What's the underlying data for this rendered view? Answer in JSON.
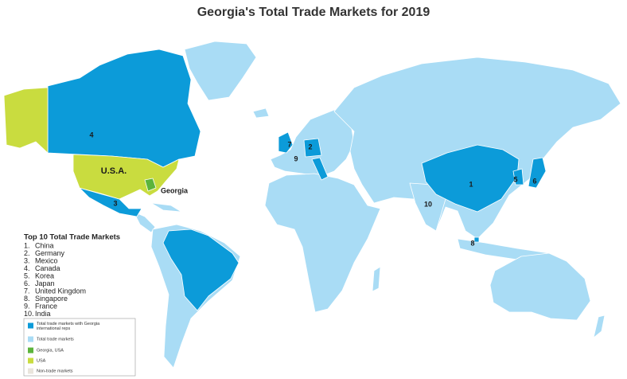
{
  "title": "Georgia's Total Trade Markets for 2019",
  "list": {
    "heading": "Top 10 Total Trade Markets",
    "items": [
      {
        "rank": "1.",
        "name": "China"
      },
      {
        "rank": "2.",
        "name": "Germany"
      },
      {
        "rank": "3.",
        "name": "Mexico"
      },
      {
        "rank": "4.",
        "name": "Canada"
      },
      {
        "rank": "5.",
        "name": "Korea"
      },
      {
        "rank": "6.",
        "name": "Japan"
      },
      {
        "rank": "7.",
        "name": "United Kingdom"
      },
      {
        "rank": "8.",
        "name": "Singapore"
      },
      {
        "rank": "9.",
        "name": "France"
      },
      {
        "rank": "10.",
        "name": "India"
      }
    ]
  },
  "legend": [
    {
      "label": "Total trade markets with Georgia international reps",
      "color": "#0c9bd9"
    },
    {
      "label": "Total trade markets",
      "color": "#a9dcf5"
    },
    {
      "label": "Georgia, USA",
      "color": "#5cb43b"
    },
    {
      "label": "USA",
      "color": "#c9dc3f"
    },
    {
      "label": "Non-trade markets",
      "color": "#e9e5dc"
    }
  ],
  "map_labels": [
    {
      "text": "4"
    },
    {
      "text": "U.S.A."
    },
    {
      "text": "Georgia"
    },
    {
      "text": "3"
    },
    {
      "text": "7"
    },
    {
      "text": "2"
    },
    {
      "text": "9"
    },
    {
      "text": "1"
    },
    {
      "text": "5"
    },
    {
      "text": "6"
    },
    {
      "text": "10"
    },
    {
      "text": "8"
    }
  ]
}
